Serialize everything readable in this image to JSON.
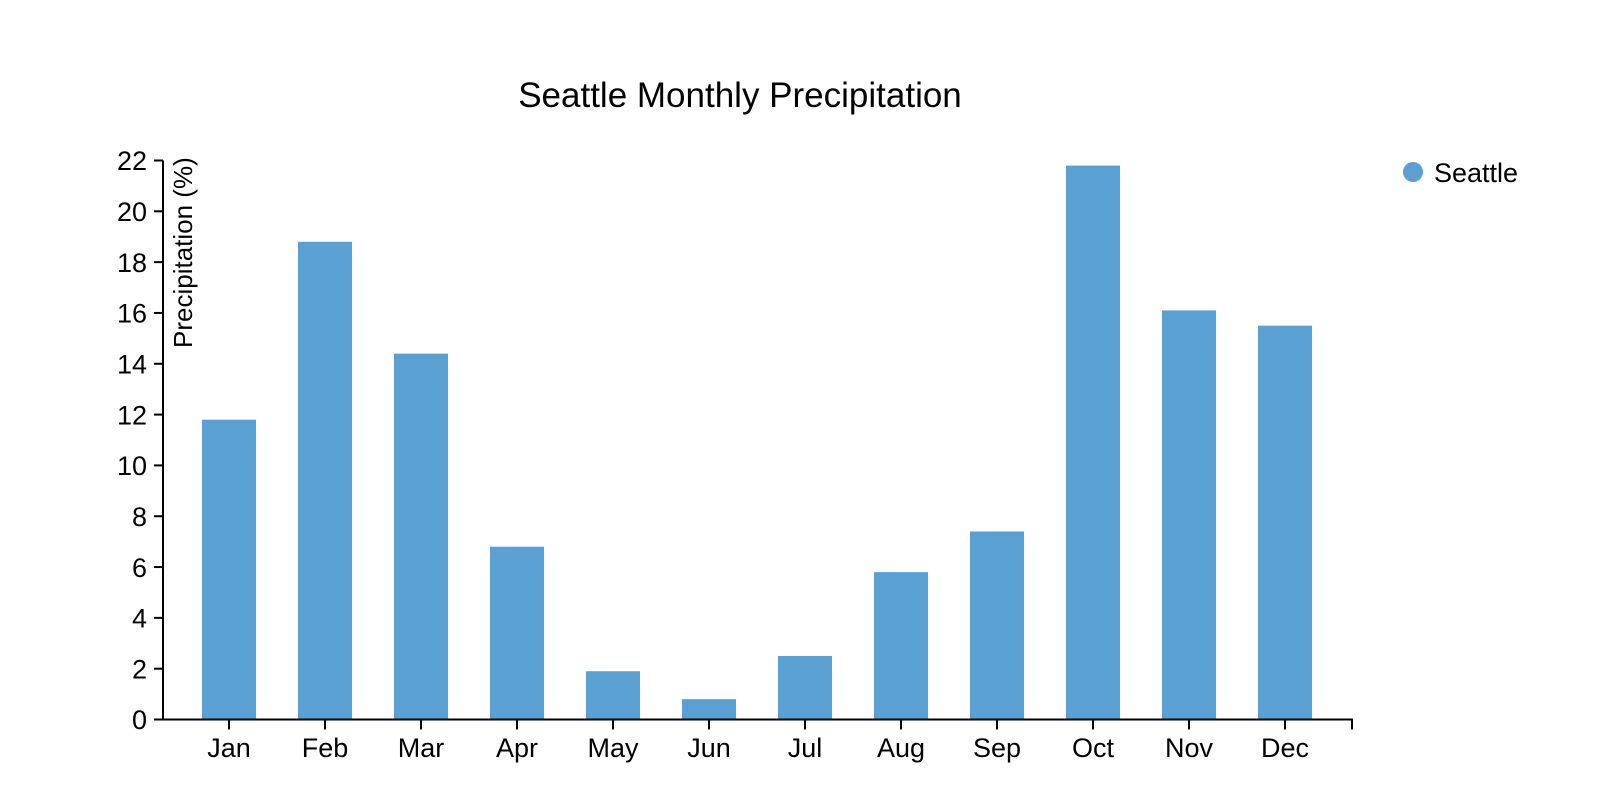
{
  "chart_data": {
    "type": "bar",
    "title": "Seattle Monthly Precipitation",
    "xlabel": "",
    "ylabel": "Precipitation (%)",
    "categories": [
      "Jan",
      "Feb",
      "Mar",
      "Apr",
      "May",
      "Jun",
      "Jul",
      "Aug",
      "Sep",
      "Oct",
      "Nov",
      "Dec"
    ],
    "series": [
      {
        "name": "Seattle",
        "values": [
          11.8,
          18.8,
          14.4,
          6.8,
          1.9,
          0.8,
          2.5,
          5.8,
          7.4,
          21.8,
          16.1,
          15.5
        ]
      }
    ],
    "ylim": [
      0,
      22
    ],
    "ytick_step": 2,
    "ytick_labels": [
      "0",
      "2",
      "4",
      "6",
      "8",
      "10",
      "12",
      "14",
      "16",
      "18",
      "20",
      "22"
    ],
    "grid": false,
    "legend_position": "right",
    "bar_color": "#5BA0D2",
    "axis_color": "#000000",
    "text_color": "#000000"
  },
  "legend": {
    "label": "Seattle",
    "marker": "circle-icon",
    "marker_color": "#5BA0D2"
  }
}
